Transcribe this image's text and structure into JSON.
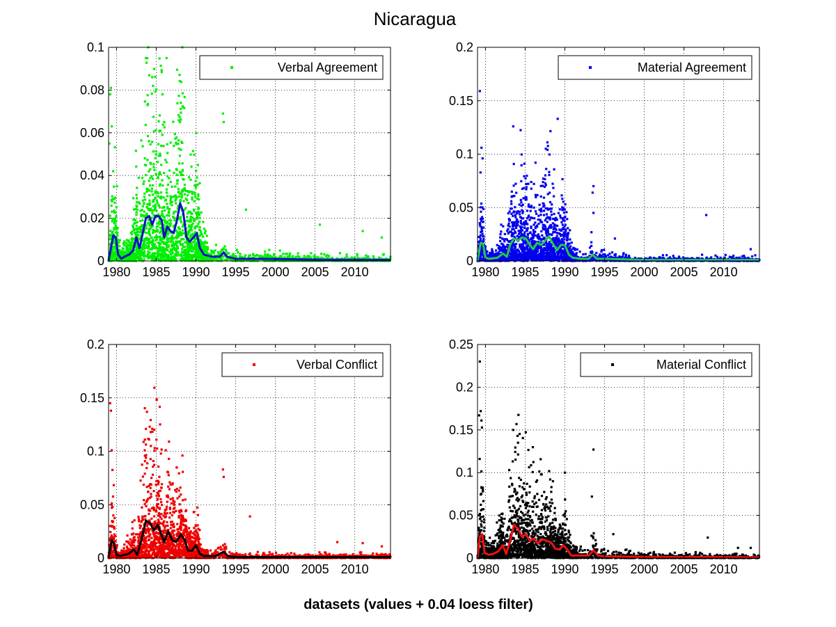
{
  "figure": {
    "title": "Nicaragua",
    "caption": "datasets (values + 0.04 loess filter)"
  },
  "chart_data": [
    {
      "type": "scatter",
      "legend": {
        "label": "Verbal Agreement",
        "placement": "top-right"
      },
      "xlim": [
        1979,
        2014.5
      ],
      "ylim": [
        0,
        0.1
      ],
      "x_ticks": [
        1980,
        1985,
        1990,
        1995,
        2000,
        2005,
        2010
      ],
      "y_ticks": [
        0,
        0.02,
        0.04,
        0.06,
        0.08,
        0.1
      ],
      "grid": true,
      "point_color": "#00ee00",
      "line_color": "#1010c8",
      "outliers": [
        [
          1979.2,
          0.078
        ],
        [
          1979.3,
          0.081
        ],
        [
          1979.4,
          0.063
        ],
        [
          1979.1,
          0.055
        ],
        [
          1983.7,
          0.095
        ],
        [
          1984.5,
          0.086
        ],
        [
          1984.6,
          0.082
        ],
        [
          1986.3,
          0.095
        ],
        [
          1988.1,
          0.074
        ],
        [
          1988.4,
          0.072
        ],
        [
          1986.0,
          0.065
        ],
        [
          1985.5,
          0.061
        ],
        [
          1993.4,
          0.069
        ],
        [
          1993.5,
          0.065
        ],
        [
          1996.3,
          0.024
        ],
        [
          2005.6,
          0.017
        ],
        [
          2011.0,
          0.014
        ],
        [
          2013.4,
          0.011
        ]
      ],
      "trend": [
        [
          1979.0,
          0.0
        ],
        [
          1979.3,
          0.006
        ],
        [
          1979.6,
          0.012
        ],
        [
          1979.9,
          0.011
        ],
        [
          1980.2,
          0.003
        ],
        [
          1980.6,
          0.001
        ],
        [
          1981.0,
          0.002
        ],
        [
          1981.6,
          0.003
        ],
        [
          1982.1,
          0.005
        ],
        [
          1982.5,
          0.011
        ],
        [
          1982.9,
          0.006
        ],
        [
          1983.3,
          0.013
        ],
        [
          1983.7,
          0.02
        ],
        [
          1984.1,
          0.021
        ],
        [
          1984.5,
          0.017
        ],
        [
          1984.9,
          0.021
        ],
        [
          1985.3,
          0.021
        ],
        [
          1985.7,
          0.019
        ],
        [
          1986.0,
          0.011
        ],
        [
          1986.4,
          0.016
        ],
        [
          1986.8,
          0.014
        ],
        [
          1987.2,
          0.013
        ],
        [
          1987.6,
          0.019
        ],
        [
          1988.0,
          0.027
        ],
        [
          1988.4,
          0.023
        ],
        [
          1988.8,
          0.011
        ],
        [
          1989.2,
          0.009
        ],
        [
          1989.7,
          0.011
        ],
        [
          1990.1,
          0.013
        ],
        [
          1990.5,
          0.006
        ],
        [
          1991.0,
          0.003
        ],
        [
          1992.0,
          0.002
        ],
        [
          1993.0,
          0.002
        ],
        [
          1993.5,
          0.004
        ],
        [
          1993.9,
          0.002
        ],
        [
          1995.0,
          0.001
        ],
        [
          1998.0,
          0.001
        ],
        [
          2002.0,
          0.0008
        ],
        [
          2006.0,
          0.0006
        ],
        [
          2010.0,
          0.0006
        ],
        [
          2014.5,
          0.0005
        ]
      ]
    },
    {
      "type": "scatter",
      "legend": {
        "label": "Material Agreement",
        "placement": "top-right"
      },
      "xlim": [
        1979,
        2014.5
      ],
      "ylim": [
        0,
        0.2
      ],
      "x_ticks": [
        1980,
        1985,
        1990,
        1995,
        2000,
        2005,
        2010
      ],
      "y_ticks": [
        0,
        0.05,
        0.1,
        0.15,
        0.2
      ],
      "grid": true,
      "point_color": "#0000ee",
      "line_color": "#22cc44",
      "outliers": [
        [
          1979.3,
          0.159
        ],
        [
          1979.5,
          0.106
        ],
        [
          1983.5,
          0.126
        ],
        [
          1989.1,
          0.133
        ],
        [
          1987.8,
          0.111
        ],
        [
          1987.6,
          0.105
        ],
        [
          1986.3,
          0.092
        ],
        [
          1984.9,
          0.091
        ],
        [
          1993.6,
          0.07
        ],
        [
          1993.5,
          0.064
        ],
        [
          1993.6,
          0.045
        ],
        [
          1996.3,
          0.021
        ],
        [
          2007.8,
          0.043
        ],
        [
          2013.4,
          0.011
        ]
      ],
      "trend": [
        [
          1979.0,
          0.0
        ],
        [
          1979.4,
          0.017
        ],
        [
          1979.7,
          0.016
        ],
        [
          1980.0,
          0.003
        ],
        [
          1980.5,
          0.002
        ],
        [
          1981.5,
          0.003
        ],
        [
          1982.2,
          0.007
        ],
        [
          1982.7,
          0.004
        ],
        [
          1983.1,
          0.015
        ],
        [
          1983.6,
          0.021
        ],
        [
          1984.1,
          0.019
        ],
        [
          1984.6,
          0.022
        ],
        [
          1985.1,
          0.021
        ],
        [
          1985.5,
          0.016
        ],
        [
          1986.0,
          0.011
        ],
        [
          1986.5,
          0.017
        ],
        [
          1987.0,
          0.015
        ],
        [
          1987.5,
          0.019
        ],
        [
          1988.0,
          0.023
        ],
        [
          1988.5,
          0.016
        ],
        [
          1989.0,
          0.01
        ],
        [
          1989.5,
          0.015
        ],
        [
          1990.0,
          0.015
        ],
        [
          1990.5,
          0.006
        ],
        [
          1991.0,
          0.003
        ],
        [
          1992.0,
          0.002
        ],
        [
          1993.0,
          0.002
        ],
        [
          1993.5,
          0.006
        ],
        [
          1994.0,
          0.002
        ],
        [
          1995.0,
          0.002
        ],
        [
          2000.0,
          0.001
        ],
        [
          2005.0,
          0.001
        ],
        [
          2010.0,
          0.001
        ],
        [
          2014.5,
          0.001
        ]
      ]
    },
    {
      "type": "scatter",
      "legend": {
        "label": "Verbal Conflict",
        "placement": "top-right"
      },
      "xlim": [
        1979,
        2014.5
      ],
      "ylim": [
        0,
        0.2
      ],
      "x_ticks": [
        1980,
        1985,
        1990,
        1995,
        2000,
        2005,
        2010
      ],
      "y_ticks": [
        0,
        0.05,
        0.1,
        0.15,
        0.2
      ],
      "grid": true,
      "point_color": "#ee0000",
      "line_color": "#000000",
      "outliers": [
        [
          1979.2,
          0.145
        ],
        [
          1979.3,
          0.138
        ],
        [
          1979.4,
          0.101
        ],
        [
          1983.7,
          0.121
        ],
        [
          1984.5,
          0.121
        ],
        [
          1984.1,
          0.111
        ],
        [
          1984.8,
          0.103
        ],
        [
          1986.2,
          0.101
        ],
        [
          1988.3,
          0.096
        ],
        [
          1993.4,
          0.083
        ],
        [
          1993.5,
          0.076
        ],
        [
          1996.8,
          0.039
        ],
        [
          2007.8,
          0.015
        ],
        [
          2011.0,
          0.014
        ],
        [
          2013.4,
          0.011
        ]
      ],
      "trend": [
        [
          1979.0,
          0.0
        ],
        [
          1979.4,
          0.017
        ],
        [
          1979.7,
          0.013
        ],
        [
          1980.0,
          0.003
        ],
        [
          1980.5,
          0.002
        ],
        [
          1981.5,
          0.004
        ],
        [
          1982.2,
          0.008
        ],
        [
          1982.6,
          0.003
        ],
        [
          1983.1,
          0.016
        ],
        [
          1983.7,
          0.035
        ],
        [
          1984.2,
          0.033
        ],
        [
          1984.7,
          0.026
        ],
        [
          1985.2,
          0.031
        ],
        [
          1985.6,
          0.023
        ],
        [
          1986.0,
          0.015
        ],
        [
          1986.5,
          0.025
        ],
        [
          1987.0,
          0.017
        ],
        [
          1987.5,
          0.015
        ],
        [
          1988.1,
          0.022
        ],
        [
          1988.6,
          0.017
        ],
        [
          1989.0,
          0.007
        ],
        [
          1989.5,
          0.007
        ],
        [
          1990.0,
          0.012
        ],
        [
          1990.5,
          0.004
        ],
        [
          1991.0,
          0.002
        ],
        [
          1992.5,
          0.002
        ],
        [
          1993.5,
          0.006
        ],
        [
          1994.0,
          0.002
        ],
        [
          1995.0,
          0.001
        ],
        [
          2000.0,
          0.001
        ],
        [
          2005.0,
          0.001
        ],
        [
          2010.0,
          0.001
        ],
        [
          2014.5,
          0.001
        ]
      ]
    },
    {
      "type": "scatter",
      "legend": {
        "label": "Material Conflict",
        "placement": "top-right"
      },
      "xlim": [
        1979,
        2014.5
      ],
      "ylim": [
        0,
        0.25
      ],
      "x_ticks": [
        1980,
        1985,
        1990,
        1995,
        2000,
        2005,
        2010
      ],
      "y_ticks": [
        0,
        0.05,
        0.1,
        0.15,
        0.2,
        0.25
      ],
      "grid": true,
      "point_color": "#000000",
      "line_color": "#ee1111",
      "outliers": [
        [
          1979.3,
          0.23
        ],
        [
          1979.4,
          0.172
        ],
        [
          1979.2,
          0.167
        ],
        [
          1979.5,
          0.161
        ],
        [
          1983.5,
          0.15
        ],
        [
          1984.1,
          0.135
        ],
        [
          1983.0,
          0.103
        ],
        [
          1987.0,
          0.098
        ],
        [
          1993.6,
          0.127
        ],
        [
          1990.0,
          0.1
        ],
        [
          1988.5,
          0.09
        ],
        [
          1993.4,
          0.072
        ],
        [
          1996.1,
          0.028
        ],
        [
          2008.0,
          0.024
        ],
        [
          2011.8,
          0.012
        ],
        [
          2013.4,
          0.012
        ]
      ],
      "trend": [
        [
          1979.0,
          0.0
        ],
        [
          1979.3,
          0.025
        ],
        [
          1979.6,
          0.028
        ],
        [
          1979.9,
          0.006
        ],
        [
          1980.4,
          0.004
        ],
        [
          1981.0,
          0.005
        ],
        [
          1981.6,
          0.008
        ],
        [
          1982.2,
          0.015
        ],
        [
          1982.6,
          0.005
        ],
        [
          1983.1,
          0.02
        ],
        [
          1983.6,
          0.039
        ],
        [
          1984.1,
          0.034
        ],
        [
          1984.6,
          0.025
        ],
        [
          1985.1,
          0.028
        ],
        [
          1985.6,
          0.02
        ],
        [
          1986.1,
          0.023
        ],
        [
          1986.6,
          0.017
        ],
        [
          1987.2,
          0.022
        ],
        [
          1987.8,
          0.02
        ],
        [
          1988.3,
          0.018
        ],
        [
          1988.8,
          0.011
        ],
        [
          1989.3,
          0.01
        ],
        [
          1989.8,
          0.015
        ],
        [
          1990.3,
          0.01
        ],
        [
          1990.8,
          0.003
        ],
        [
          1992.0,
          0.003
        ],
        [
          1993.0,
          0.003
        ],
        [
          1993.6,
          0.009
        ],
        [
          1994.2,
          0.003
        ],
        [
          1995.0,
          0.002
        ],
        [
          2000.0,
          0.0015
        ],
        [
          2005.0,
          0.0012
        ],
        [
          2010.0,
          0.0012
        ],
        [
          2014.5,
          0.001
        ]
      ]
    }
  ]
}
